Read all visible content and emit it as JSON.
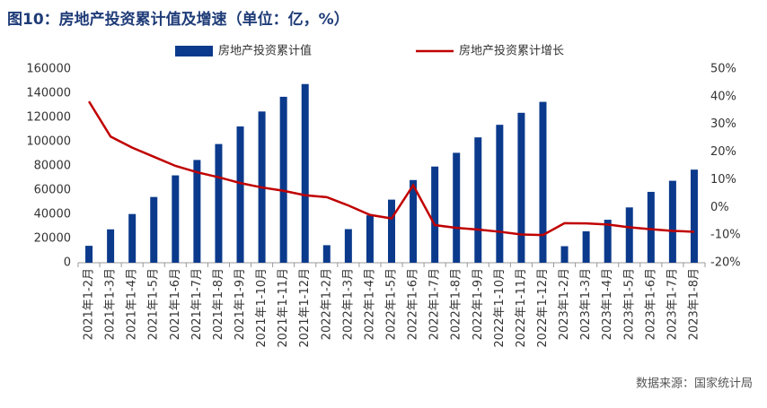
{
  "chart_data": {
    "type": "bar-line",
    "title": "图10：房地产投资累计值及增速（单位：亿，%）",
    "source": "数据来源：国家统计局",
    "categories": [
      "2021年1-2月",
      "2021年1-3月",
      "2021年1-4月",
      "2021年1-5月",
      "2021年1-6月",
      "2021年1-7月",
      "2021年1-8月",
      "2021年1-9月",
      "2021年1-10月",
      "2021年1-11月",
      "2021年1-12月",
      "2022年1-2月",
      "2022年1-3月",
      "2022年1-4月",
      "2022年1-5月",
      "2022年1-6月",
      "2022年1-7月",
      "2022年1-8月",
      "2022年1-9月",
      "2022年1-10月",
      "2022年1-11月",
      "2022年1-12月",
      "2023年1-2月",
      "2023年1-3月",
      "2023年1-4月",
      "2023年1-5月",
      "2023年1-6月",
      "2023年1-7月",
      "2023年1-8月"
    ],
    "series": [
      {
        "name": "房地产投资累计值",
        "type": "bar",
        "color": "#0b3a8c",
        "values": [
          13986,
          27576,
          40241,
          54318,
          72179,
          84895,
          98060,
          112568,
          124934,
          137086,
          147602,
          14499,
          27765,
          39154,
          52134,
          68314,
          79462,
          90809,
          103559,
          113945,
          123863,
          132895,
          13669,
          25974,
          35514,
          45701,
          58550,
          67717,
          76900
        ]
      },
      {
        "name": "房地产投资累计增长",
        "type": "line",
        "axis": "y2",
        "color": "#c00000",
        "values": [
          38.3,
          25.6,
          21.6,
          18.3,
          15.0,
          12.7,
          10.9,
          8.8,
          7.2,
          6.0,
          4.4,
          3.7,
          0.7,
          -2.7,
          -4.0,
          8,
          -6.4,
          -7.4,
          -8.0,
          -8.8,
          -9.8,
          -10.0,
          -5.7,
          -5.8,
          -6.2,
          -7.2,
          -7.9,
          -8.5,
          -8.8
        ]
      }
    ],
    "ylim": [
      0,
      160000
    ],
    "yticks": [
      0,
      20000,
      40000,
      60000,
      80000,
      100000,
      120000,
      140000,
      160000
    ],
    "y2lim": [
      -20,
      50
    ],
    "y2ticks": [
      {
        "value": -20,
        "label": "-20%"
      },
      {
        "value": -10,
        "label": "-10%"
      },
      {
        "value": 0,
        "label": "0%"
      },
      {
        "value": 10,
        "label": "10%"
      },
      {
        "value": 20,
        "label": "20%"
      },
      {
        "value": 30,
        "label": "30%"
      },
      {
        "value": 40,
        "label": "40%"
      },
      {
        "value": 50,
        "label": "50%"
      }
    ],
    "legend": "top"
  }
}
